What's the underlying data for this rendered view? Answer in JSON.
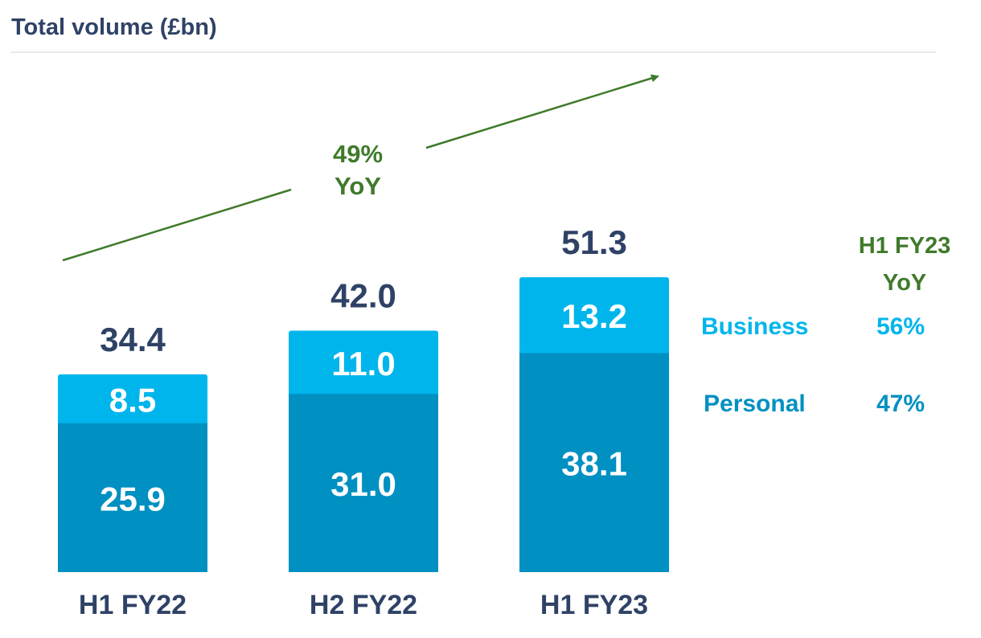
{
  "title": "Total volume (£bn)",
  "growth": {
    "value": "49%",
    "label": "YoY"
  },
  "yoy_panel": {
    "header_line1": "H1 FY23",
    "header_line2": "YoY",
    "rows": [
      {
        "label": "Business",
        "value": "56%"
      },
      {
        "label": "Personal",
        "value": "47%"
      }
    ]
  },
  "colors": {
    "business": "#00b5ec",
    "personal": "#0090c2",
    "total_text": "#2f4266",
    "growth": "#3f7a2b",
    "title": "#2f4266"
  },
  "chart_data": {
    "type": "bar",
    "stacked": true,
    "title": "Total volume (£bn)",
    "categories": [
      "H1 FY22",
      "H2 FY22",
      "H1 FY23"
    ],
    "series": [
      {
        "name": "Personal",
        "values": [
          25.9,
          31.0,
          38.1
        ],
        "labels": [
          "25.9",
          "31.0",
          "38.1"
        ]
      },
      {
        "name": "Business",
        "values": [
          8.5,
          11.0,
          13.2
        ],
        "labels": [
          "8.5",
          "11.0",
          "13.2"
        ]
      }
    ],
    "totals": [
      34.4,
      42.0,
      51.3
    ],
    "total_labels": [
      "34.4",
      "42.0",
      "51.3"
    ],
    "ylim": [
      0,
      51.3
    ],
    "xlabel": "",
    "ylabel": "",
    "grid": false,
    "annotation": "49% YoY"
  }
}
